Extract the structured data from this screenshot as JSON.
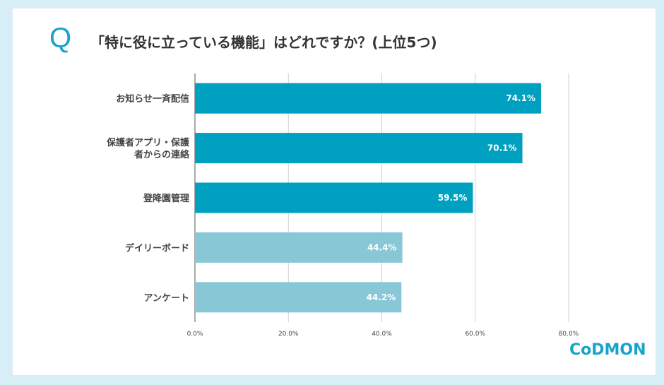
{
  "header": {
    "q_mark": "Q",
    "title": "「特に役に立っている機能」はどれですか？(上位5つ)"
  },
  "logo": {
    "text": "CoDMON"
  },
  "colors": {
    "primary_bar": "#00a0c0",
    "secondary_bar": "#87c7d6",
    "accent": "#1aa3c9"
  },
  "chart_data": {
    "type": "bar",
    "orientation": "horizontal",
    "title": "「特に役に立っている機能」はどれですか？(上位5つ)",
    "categories": [
      [
        "お知らせ一斉配信"
      ],
      [
        "保護者アプリ・保護",
        "者からの連絡"
      ],
      [
        "登降園管理"
      ],
      [
        "デイリーボード"
      ],
      [
        "アンケート"
      ]
    ],
    "values": [
      74.1,
      70.1,
      59.5,
      44.4,
      44.2
    ],
    "data_labels": [
      "74.1%",
      "70.1%",
      "59.5%",
      "44.4%",
      "44.2%"
    ],
    "bar_colors": [
      "#00a0c0",
      "#00a0c0",
      "#00a0c0",
      "#87c7d6",
      "#87c7d6"
    ],
    "xlim": [
      0,
      80
    ],
    "xticks": [
      0,
      20,
      40,
      60,
      80
    ],
    "xtick_labels": [
      "0.0%",
      "20.0%",
      "40.0%",
      "60.0%",
      "80.0%"
    ],
    "xlabel": "",
    "ylabel": "",
    "grid": true
  }
}
